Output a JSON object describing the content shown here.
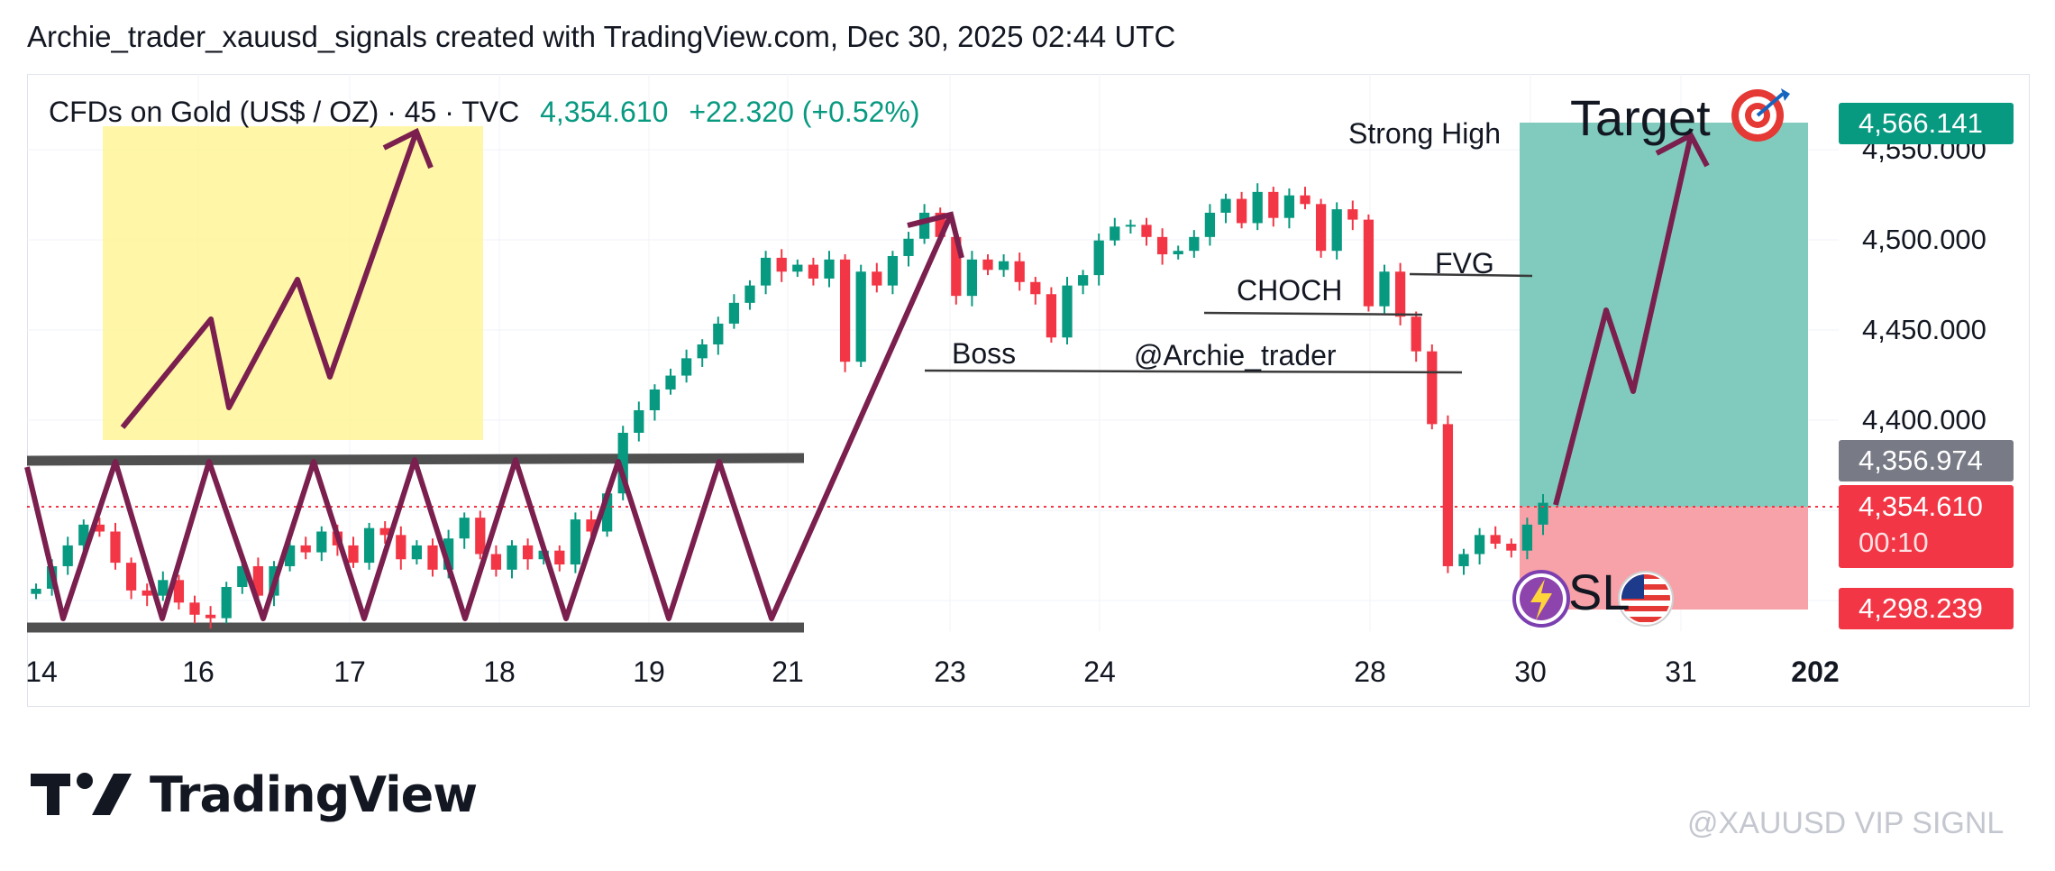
{
  "header": {
    "title": "Archie_trader_xauusd_signals created with TradingView.com, Dec 30, 2025 02:44 UTC"
  },
  "legend": {
    "symbol": "CFDs on Gold (US$ / OZ) · 45 · TVC",
    "last": "4,354.610",
    "change": "+22.320 (+0.52%)"
  },
  "chart_data": {
    "type": "line",
    "subtype": "candlestick",
    "x_tick_labels": [
      "14",
      "16",
      "17",
      "18",
      "19",
      "21",
      "23",
      "24",
      "28",
      "30",
      "31",
      "202"
    ],
    "y_tick_labels": [
      "4,400.000",
      "4,450.000",
      "4,500.000",
      "4,550.000"
    ],
    "ylim": [
      4293,
      4574
    ],
    "series": [
      {
        "values": [
          4305,
          4318,
          4330,
          4342,
          4338,
          4320,
          4304,
          4301,
          4310,
          4297,
          4290,
          4288,
          4306,
          4318,
          4301,
          4318,
          4330,
          4326,
          4338,
          4330,
          4320,
          4340,
          4336,
          4322,
          4330,
          4316,
          4334,
          4346,
          4325,
          4316,
          4330,
          4322,
          4327,
          4319,
          4345,
          4338,
          4360,
          4395,
          4408,
          4420,
          4428,
          4438,
          4446,
          4458,
          4470,
          4480,
          4496,
          4488,
          4492,
          4484,
          4495,
          4436,
          4488,
          4480,
          4497,
          4507,
          4522,
          4508,
          4474,
          4495,
          4489,
          4494,
          4482,
          4475,
          4450,
          4480,
          4486,
          4506,
          4514,
          4515,
          4508,
          4498,
          4500,
          4508,
          4522,
          4530,
          4516,
          4534,
          4519,
          4532,
          4527,
          4500,
          4524,
          4518,
          4468,
          4488,
          4462,
          4442,
          4400,
          4318,
          4325,
          4336,
          4331,
          4327,
          4342,
          4354.61
        ]
      }
    ],
    "zones": {
      "take_profit_level": 4566.141,
      "entry_level": 4354.61,
      "stop_loss_level": 4298.239,
      "reference_level": 4356.974
    },
    "price_labels": {
      "target": "4,566.141",
      "reference": "4,356.974",
      "current": "4,354.610",
      "countdown": "00:10",
      "stop": "4,298.239"
    },
    "annotations": {
      "strong_high": "Strong High",
      "target": "Target",
      "fvg": "FVG",
      "choch": "CHOCH",
      "boss": "Boss",
      "author": "@Archie_trader",
      "sl": "SL"
    },
    "colors": {
      "bull": "#089981",
      "bear": "#f23645",
      "tp_zone": "#80cbbd",
      "sl_zone": "#f7a1a8",
      "drawing": "#7a1f4e",
      "highlight": "#fff59d",
      "channel": "#505050"
    },
    "icons": [
      "target-icon",
      "lightning-icon",
      "us-flag-icon"
    ]
  },
  "branding": {
    "logo_text": "TradingView",
    "watermark": "@XAUUSD VIP SIGNL"
  }
}
